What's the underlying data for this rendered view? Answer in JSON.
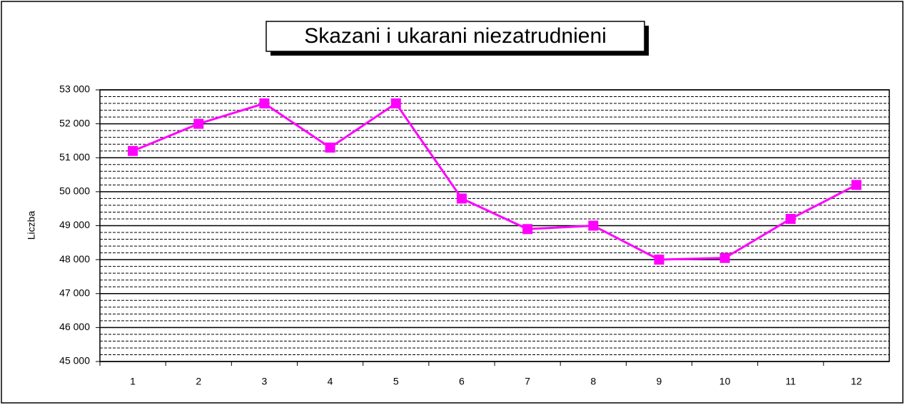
{
  "chart_data": {
    "type": "line",
    "title": "Skazani i ukarani niezatrudnieni",
    "y_label": "Liczba",
    "categories": [
      "1",
      "2",
      "3",
      "4",
      "5",
      "6",
      "7",
      "8",
      "9",
      "10",
      "11",
      "12"
    ],
    "series": [
      {
        "name": "Skazani i ukarani niezatrudnieni",
        "color": "#ff00ff",
        "values": [
          51200,
          52000,
          52600,
          51300,
          52600,
          49800,
          48900,
          49000,
          48000,
          48050,
          49200,
          50200
        ]
      }
    ],
    "ylim": [
      45000,
      53000
    ],
    "yticks": [
      {
        "value": 45000,
        "label": "45 000"
      },
      {
        "value": 46000,
        "label": "46 000"
      },
      {
        "value": 47000,
        "label": "47 000"
      },
      {
        "value": 48000,
        "label": "48 000"
      },
      {
        "value": 49000,
        "label": "49 000"
      },
      {
        "value": 50000,
        "label": "50 000"
      },
      {
        "value": 51000,
        "label": "51 000"
      },
      {
        "value": 52000,
        "label": "52 000"
      },
      {
        "value": 53000,
        "label": "53 000"
      }
    ],
    "grid": true,
    "minor_grid": true,
    "legend": false
  }
}
